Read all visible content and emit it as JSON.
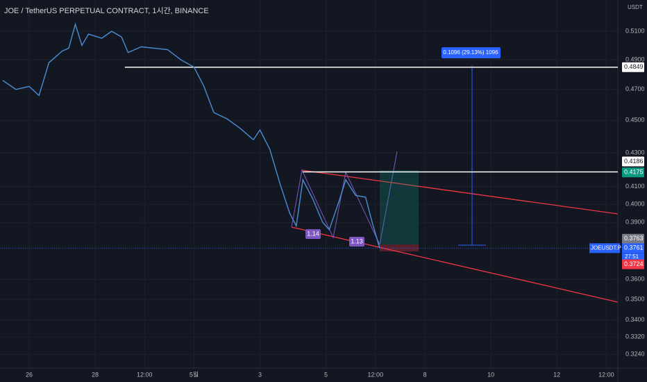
{
  "header": {
    "title": "JOE / TetherUS PERPETUAL CONTRACT, 1시간, BINANCE"
  },
  "chart_data": {
    "type": "line",
    "currency": "USDT",
    "color": "#4a8fd6",
    "log_scale": true,
    "grid": true,
    "x": [
      -0.8,
      -0.4,
      0,
      0.3,
      0.6,
      1.0,
      1.2,
      1.4,
      1.6,
      1.8,
      2.2,
      2.5,
      2.8,
      3.0,
      3.4,
      3.8,
      4.2,
      4.6,
      5.0,
      5.3,
      5.6,
      6.0,
      6.4,
      6.8,
      7.0,
      7.3,
      7.6,
      7.9,
      8.1,
      8.3,
      8.6,
      8.9,
      9.1,
      9.4,
      9.6,
      9.9,
      10.2,
      10.4,
      10.63
    ],
    "values": [
      0.476,
      0.47,
      0.472,
      0.466,
      0.488,
      0.496,
      0.498,
      0.515,
      0.5,
      0.508,
      0.505,
      0.51,
      0.506,
      0.495,
      0.499,
      0.498,
      0.497,
      0.49,
      0.485,
      0.472,
      0.455,
      0.451,
      0.445,
      0.438,
      0.444,
      0.432,
      0.412,
      0.395,
      0.388,
      0.414,
      0.403,
      0.39,
      0.386,
      0.402,
      0.414,
      0.405,
      0.404,
      0.39,
      0.3761
    ],
    "xlim": [
      -0.884,
      17.85
    ],
    "xticks": [
      {
        "value": 0,
        "label": "26"
      },
      {
        "value": 2,
        "label": "28"
      },
      {
        "value": 3.5,
        "label": "12:00"
      },
      {
        "value": 5,
        "label": "5월"
      },
      {
        "value": 7,
        "label": "3"
      },
      {
        "value": 9,
        "label": "5"
      },
      {
        "value": 10.5,
        "label": "12:00"
      },
      {
        "value": 12,
        "label": "8"
      },
      {
        "value": 14,
        "label": "10"
      },
      {
        "value": 16,
        "label": "12"
      },
      {
        "value": 17.5,
        "label": "12:00"
      }
    ],
    "ylim": [
      0.3178,
      0.5329
    ],
    "yticks": [
      {
        "value": 0.51,
        "label": "0.5100"
      },
      {
        "value": 0.49,
        "label": "0.4900"
      },
      {
        "value": 0.47,
        "label": "0.4700"
      },
      {
        "value": 0.45,
        "label": "0.4500"
      },
      {
        "value": 0.43,
        "label": "0.4300"
      },
      {
        "value": 0.41,
        "label": "0.4100"
      },
      {
        "value": 0.4,
        "label": "0.4000"
      },
      {
        "value": 0.39,
        "label": "0.3900"
      },
      {
        "value": 0.36,
        "label": "0.3600"
      },
      {
        "value": 0.35,
        "label": "0.3500"
      },
      {
        "value": 0.34,
        "label": "0.3400"
      },
      {
        "value": 0.332,
        "label": "0.3320"
      },
      {
        "value": 0.324,
        "label": "0.3240"
      }
    ],
    "price_tags": [
      {
        "value": 0.4849,
        "color": "#ffffff"
      },
      {
        "value": 0.4186,
        "color": "#ffffff"
      },
      {
        "value": 0.4175,
        "color": "#089981"
      },
      {
        "value": 0.3763,
        "color": "#787b86"
      },
      {
        "value": 0.3761,
        "color": "#2962ff"
      },
      {
        "value": 0.3724,
        "color": "#f23645"
      }
    ],
    "levels": [
      {
        "value": 0.4849,
        "from": 2.9
      },
      {
        "value": 0.4186,
        "from": 8.3
      }
    ],
    "symbol_tag": "JOEUSDT.P",
    "countdown": "27:51",
    "measure_label": "0.1096 (29.13%) 1096",
    "pattern_labels": [
      "1.14",
      "1.13"
    ]
  }
}
